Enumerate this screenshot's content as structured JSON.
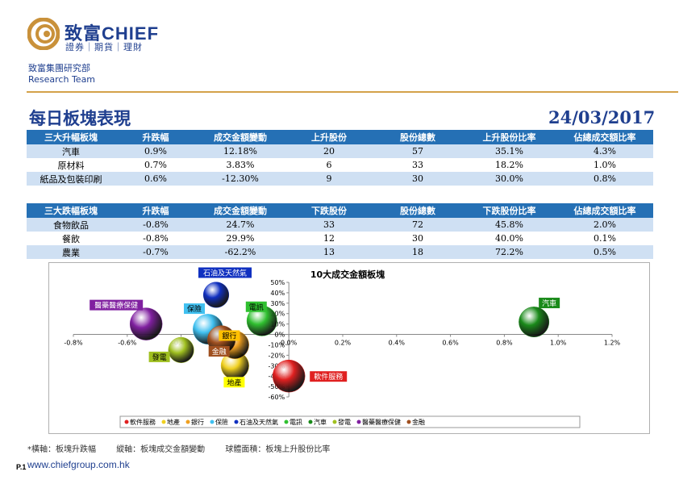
{
  "brand": {
    "name_cn": "致富",
    "name_en": "CHIEF",
    "tagline": "證券｜期貨｜理財",
    "dept_cn": "致富集團研究部",
    "dept_en": "Research Team"
  },
  "page": {
    "title": "每日板塊表現",
    "date": "24/03/2017",
    "number": "P.1",
    "url": "www.chiefgroup.com.hk"
  },
  "colors": {
    "brand_blue": "#1f3f8f",
    "header_blue": "#2570b5",
    "alt_row": "#cfe0f3",
    "gold": "#d4a24a"
  },
  "top_table": {
    "headers": [
      "三大升幅板塊",
      "升跌幅",
      "成交金額變動",
      "上升股份",
      "股份總數",
      "上升股份比率",
      "佔總成交額比率"
    ],
    "rows": [
      [
        "汽車",
        "0.9%",
        "12.18%",
        "20",
        "57",
        "35.1%",
        "4.3%"
      ],
      [
        "原材料",
        "0.7%",
        "3.83%",
        "6",
        "33",
        "18.2%",
        "1.0%"
      ],
      [
        "紙品及包裝印刷",
        "0.6%",
        "-12.30%",
        "9",
        "30",
        "30.0%",
        "0.8%"
      ]
    ]
  },
  "bottom_table": {
    "headers": [
      "三大跌幅板塊",
      "升跌幅",
      "成交金額變動",
      "下跌股份",
      "股份總數",
      "下跌股份比率",
      "佔總成交額比率"
    ],
    "rows": [
      [
        "食物飲品",
        "-0.8%",
        "24.7%",
        "33",
        "72",
        "45.8%",
        "2.0%"
      ],
      [
        "餐飲",
        "-0.8%",
        "29.9%",
        "12",
        "30",
        "40.0%",
        "0.1%"
      ],
      [
        "農業",
        "-0.7%",
        "-62.2%",
        "13",
        "18",
        "72.2%",
        "0.5%"
      ]
    ]
  },
  "chart_data": {
    "type": "scatter",
    "title": "10大成交金額板塊",
    "xlim": [
      -0.8,
      1.2
    ],
    "ylim": [
      -60,
      50
    ],
    "x_ticks": [
      "-0.8%",
      "-0.6%",
      "-0.4%",
      "-0.2%",
      "0.0%",
      "0.2%",
      "0.4%",
      "0.6%",
      "0.8%",
      "1.0%",
      "1.2%"
    ],
    "y_ticks": [
      "50%",
      "40%",
      "30%",
      "20%",
      "10%",
      "0%",
      "-10%",
      "-20%",
      "-30%",
      "-40%",
      "-50%",
      "-60%"
    ],
    "legend_position": "bottom",
    "series": [
      {
        "name": "軟件服務",
        "x": 0.0,
        "y": -40,
        "size": 40,
        "color": "#e02020",
        "tag_bg": "#e02020",
        "tag_fg": "#ffffff"
      },
      {
        "name": "地產",
        "x": -0.2,
        "y": -30,
        "size": 30,
        "color": "#f0d020",
        "tag_bg": "#ffff00",
        "tag_fg": "#000000"
      },
      {
        "name": "銀行",
        "x": -0.2,
        "y": -10,
        "size": 30,
        "color": "#f0a020",
        "tag_bg": "#ffc000",
        "tag_fg": "#000000"
      },
      {
        "name": "保險",
        "x": -0.3,
        "y": 5,
        "size": 35,
        "color": "#40c0f0",
        "tag_bg": "#40c0f0",
        "tag_fg": "#000000"
      },
      {
        "name": "石油及天然氣",
        "x": -0.27,
        "y": 38,
        "size": 25,
        "color": "#1030c0",
        "tag_bg": "#1030c0",
        "tag_fg": "#ffffff"
      },
      {
        "name": "電訊",
        "x": -0.1,
        "y": 13,
        "size": 35,
        "color": "#30c030",
        "tag_bg": "#30c030",
        "tag_fg": "#000000"
      },
      {
        "name": "汽車",
        "x": 0.91,
        "y": 12,
        "size": 35,
        "color": "#1a8a1a",
        "tag_bg": "#1a8a1a",
        "tag_fg": "#ffffff"
      },
      {
        "name": "發電",
        "x": -0.4,
        "y": -15,
        "size": 25,
        "color": "#a0c020",
        "tag_bg": "#a0c020",
        "tag_fg": "#000000"
      },
      {
        "name": "醫藥醫療保健",
        "x": -0.53,
        "y": 10,
        "size": 40,
        "color": "#8020a0",
        "tag_bg": "#8020a0",
        "tag_fg": "#ffffff"
      },
      {
        "name": "金融",
        "x": -0.25,
        "y": -5,
        "size": 30,
        "color": "#a05020",
        "tag_bg": "#a05020",
        "tag_fg": "#ffffff"
      }
    ]
  },
  "footnote": {
    "x_axis": "*橫軸：板塊升跌幅",
    "y_axis": "縱軸：板塊成交金額變動",
    "bubble": "球體面積：板塊上升股份比率"
  }
}
